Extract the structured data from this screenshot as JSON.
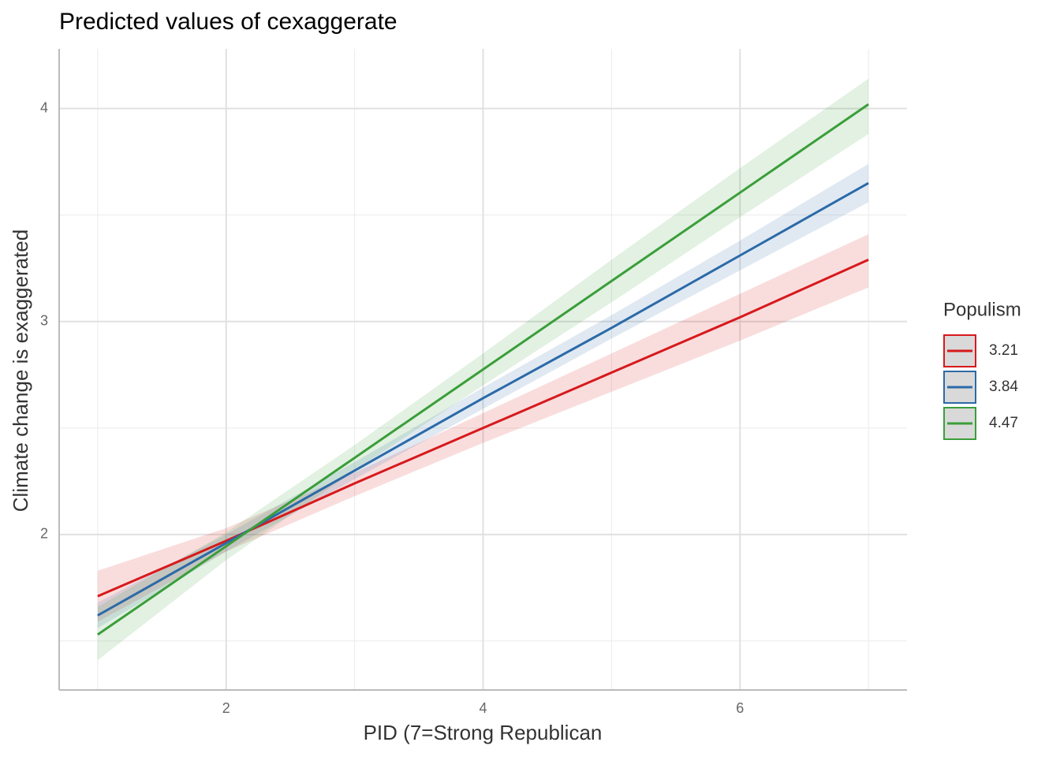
{
  "chart_data": {
    "type": "line",
    "title": "Predicted values of cexaggerate",
    "x_label": "PID (7=Strong Republican",
    "y_label": "Climate change is exaggerated",
    "legend_title": "Populism",
    "legend_position": "right",
    "grid": true,
    "x": [
      1,
      2,
      3,
      4,
      5,
      6,
      7
    ],
    "xlim": [
      0.7,
      7.3
    ],
    "xticks": [
      2,
      4,
      6
    ],
    "ylim": [
      1.27,
      4.28
    ],
    "yticks": [
      2,
      3,
      4
    ],
    "series": [
      {
        "name": "3.21",
        "color": "#d7191c",
        "values": [
          1.71,
          1.97,
          2.24,
          2.5,
          2.76,
          3.02,
          3.29
        ],
        "lower": [
          1.59,
          1.92,
          2.18,
          2.43,
          2.67,
          2.91,
          3.16
        ],
        "upper": [
          1.83,
          2.03,
          2.29,
          2.57,
          2.85,
          3.13,
          3.41
        ]
      },
      {
        "name": "3.84",
        "color": "#2c6aa8",
        "values": [
          1.62,
          1.96,
          2.3,
          2.64,
          2.97,
          3.31,
          3.65
        ],
        "lower": [
          1.56,
          1.92,
          2.26,
          2.59,
          2.92,
          3.24,
          3.56
        ],
        "upper": [
          1.68,
          2.0,
          2.34,
          2.69,
          3.03,
          3.38,
          3.74
        ]
      },
      {
        "name": "4.47",
        "color": "#3a9e3a",
        "values": [
          1.53,
          1.945,
          2.36,
          2.775,
          3.19,
          3.605,
          4.02
        ],
        "lower": [
          1.41,
          1.88,
          2.3,
          2.7,
          3.09,
          3.49,
          3.88
        ],
        "upper": [
          1.66,
          2.01,
          2.42,
          2.85,
          3.29,
          3.72,
          4.14
        ]
      }
    ]
  }
}
